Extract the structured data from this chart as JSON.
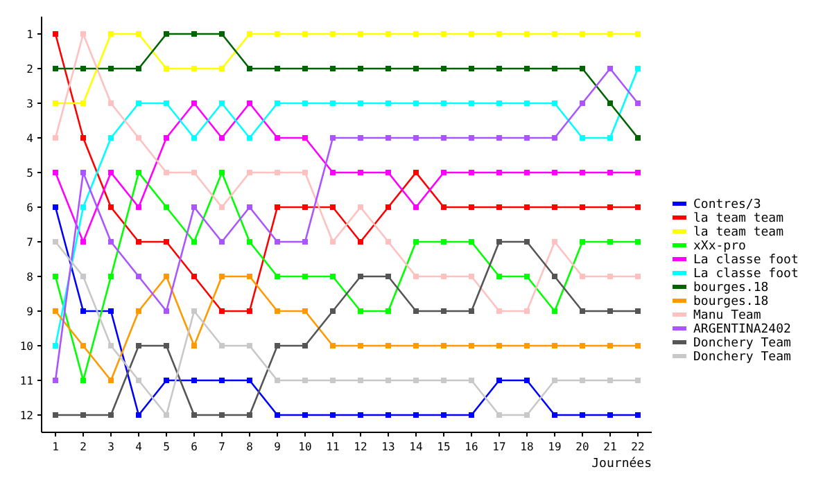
{
  "chart_data": {
    "type": "line",
    "xlabel": "Journées",
    "x": [
      1,
      2,
      3,
      4,
      5,
      6,
      7,
      8,
      9,
      10,
      11,
      12,
      13,
      14,
      15,
      16,
      17,
      18,
      19,
      20,
      21,
      22
    ],
    "xlim": [
      0.5,
      22.5
    ],
    "xticks": [
      1,
      2,
      3,
      4,
      5,
      6,
      7,
      8,
      9,
      10,
      11,
      12,
      13,
      14,
      15,
      16,
      17,
      18,
      19,
      20,
      21,
      22
    ],
    "ylim": [
      12.5,
      0.5
    ],
    "yticks": [
      1,
      2,
      3,
      4,
      5,
      6,
      7,
      8,
      9,
      10,
      11,
      12
    ],
    "grid": false,
    "legend": "right",
    "marker": "square",
    "line_style": "solid",
    "series": [
      {
        "name": "Contres/3",
        "color": "#0000ff",
        "values": [
          6,
          9,
          9,
          12,
          11,
          11,
          11,
          11,
          12,
          12,
          12,
          12,
          12,
          12,
          12,
          12,
          11,
          11,
          12,
          12,
          12,
          12
        ]
      },
      {
        "name": "la team team",
        "color": "#ff0000",
        "values": [
          1,
          4,
          6,
          7,
          7,
          8,
          9,
          9,
          6,
          6,
          6,
          7,
          6,
          5,
          6,
          6,
          6,
          6,
          6,
          6,
          6,
          6
        ]
      },
      {
        "name": "la team team",
        "color": "#ffff00",
        "values": [
          3,
          3,
          1,
          1,
          2,
          2,
          2,
          1,
          1,
          1,
          1,
          1,
          1,
          1,
          1,
          1,
          1,
          1,
          1,
          1,
          1,
          1
        ]
      },
      {
        "name": "xXx-pro",
        "color": "#00ff00",
        "values": [
          8,
          11,
          8,
          5,
          6,
          7,
          5,
          7,
          8,
          8,
          8,
          9,
          9,
          7,
          7,
          7,
          8,
          8,
          9,
          7,
          7,
          7
        ]
      },
      {
        "name": "La classe foot",
        "color": "#ff00ff",
        "values": [
          5,
          7,
          5,
          6,
          4,
          3,
          4,
          3,
          4,
          4,
          5,
          5,
          5,
          6,
          5,
          5,
          5,
          5,
          5,
          5,
          5,
          5
        ]
      },
      {
        "name": "La classe foot",
        "color": "#00ffff",
        "values": [
          10,
          6,
          4,
          3,
          3,
          4,
          3,
          4,
          3,
          3,
          3,
          3,
          3,
          3,
          3,
          3,
          3,
          3,
          3,
          4,
          4,
          2
        ]
      },
      {
        "name": "bourges.18",
        "color": "#006400",
        "values": [
          2,
          2,
          2,
          2,
          1,
          1,
          1,
          2,
          2,
          2,
          2,
          2,
          2,
          2,
          2,
          2,
          2,
          2,
          2,
          2,
          3,
          4
        ]
      },
      {
        "name": "bourges.18",
        "color": "#ff9900",
        "values": [
          9,
          10,
          11,
          9,
          8,
          10,
          8,
          8,
          9,
          9,
          10,
          10,
          10,
          10,
          10,
          10,
          10,
          10,
          10,
          10,
          10,
          10
        ]
      },
      {
        "name": "Manu Team",
        "color": "#ffc0c0",
        "values": [
          4,
          1,
          3,
          4,
          5,
          5,
          6,
          5,
          5,
          5,
          7,
          6,
          7,
          8,
          8,
          8,
          9,
          9,
          7,
          8,
          8,
          8
        ]
      },
      {
        "name": "ARGENTINA2402",
        "color": "#aa55ff",
        "values": [
          11,
          5,
          7,
          8,
          9,
          6,
          7,
          6,
          7,
          7,
          4,
          4,
          4,
          4,
          4,
          4,
          4,
          4,
          4,
          3,
          2,
          3
        ]
      },
      {
        "name": "Donchery Team",
        "color": "#555555",
        "values": [
          12,
          12,
          12,
          10,
          10,
          12,
          12,
          12,
          10,
          10,
          9,
          8,
          8,
          9,
          9,
          9,
          7,
          7,
          8,
          9,
          9,
          9
        ]
      },
      {
        "name": "Donchery Team",
        "color": "#c8c8c8",
        "values": [
          7,
          8,
          10,
          11,
          12,
          9,
          10,
          10,
          11,
          11,
          11,
          11,
          11,
          11,
          11,
          11,
          12,
          12,
          11,
          11,
          11,
          11
        ]
      }
    ]
  }
}
